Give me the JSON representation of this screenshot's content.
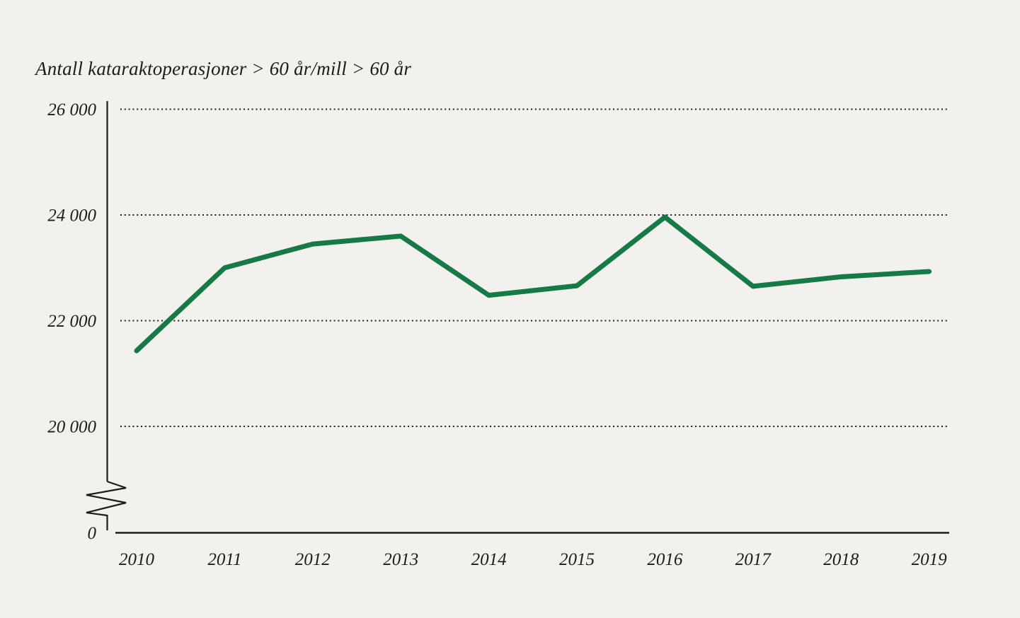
{
  "chart_data": {
    "type": "line",
    "title": "Antall kataraktoperasjoner > 60 år/mill > 60 år",
    "categories": [
      "2010",
      "2011",
      "2012",
      "2013",
      "2014",
      "2015",
      "2016",
      "2017",
      "2018",
      "2019"
    ],
    "values": [
      21430,
      23000,
      23450,
      23600,
      22480,
      22660,
      23960,
      22650,
      22830,
      22930
    ],
    "y_ticks": [
      {
        "value": 26000,
        "label": "26 000"
      },
      {
        "value": 24000,
        "label": "24 000"
      },
      {
        "value": 22000,
        "label": "22 000"
      },
      {
        "value": 20000,
        "label": "20 000"
      }
    ],
    "y_origin_label": "0",
    "axis_break": true,
    "ylim_display": [
      20000,
      26000
    ],
    "xlabel": "",
    "ylabel": "",
    "grid": "dotted-horizontal",
    "legend": "none",
    "colors": {
      "line": "#157a46",
      "background": "#f2f1ee",
      "text": "#1e1c19",
      "axis": "#1e1c19"
    }
  }
}
